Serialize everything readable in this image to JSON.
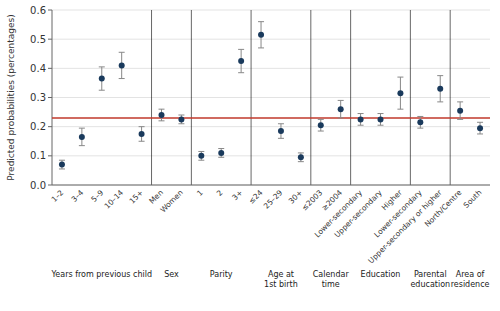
{
  "chart_data": {
    "type": "dot",
    "ylabel": "Predicted probabilities (percentages)",
    "categories": [
      "1–2",
      "3–4",
      "5–9",
      "10–14",
      "15+",
      "Men",
      "Women",
      "1",
      "2",
      "3+",
      "≤24",
      "25–29",
      "30+",
      "≤2003",
      "≥2004",
      "Lower-secondary",
      "Upper-secondary",
      "Higher",
      "Lower-secondary",
      "Upper-secondary or higher",
      "North/Centre",
      "South"
    ],
    "values": [
      0.07,
      0.165,
      0.365,
      0.41,
      0.175,
      0.24,
      0.225,
      0.1,
      0.11,
      0.425,
      0.515,
      0.185,
      0.095,
      0.205,
      0.26,
      0.225,
      0.225,
      0.315,
      0.215,
      0.33,
      0.255,
      0.195
    ],
    "error_low": [
      0.015,
      0.03,
      0.04,
      0.045,
      0.025,
      0.02,
      0.015,
      0.015,
      0.015,
      0.04,
      0.045,
      0.025,
      0.015,
      0.02,
      0.03,
      0.02,
      0.02,
      0.055,
      0.02,
      0.045,
      0.03,
      0.02
    ],
    "error_high": [
      0.015,
      0.03,
      0.04,
      0.045,
      0.025,
      0.02,
      0.015,
      0.015,
      0.015,
      0.04,
      0.045,
      0.025,
      0.015,
      0.02,
      0.03,
      0.02,
      0.02,
      0.055,
      0.02,
      0.045,
      0.03,
      0.02
    ],
    "color": "#1a3a5c",
    "groups": [
      {
        "label": "Years from previous child",
        "count": 5
      },
      {
        "label": "Sex",
        "count": 2
      },
      {
        "label": "Parity",
        "count": 3
      },
      {
        "label": "Age at\n1st birth",
        "count": 3
      },
      {
        "label": "Calendar\ntime",
        "count": 2
      },
      {
        "label": "Education",
        "count": 3
      },
      {
        "label": "Parental\neducation",
        "count": 2
      },
      {
        "label": "Area of\nresidence",
        "count": 2
      }
    ],
    "reference_lines": [
      {
        "value": 0.23,
        "color": "#c0392b"
      }
    ],
    "ylim": [
      0.0,
      0.6
    ],
    "yticks": [
      {
        "value": 0.0,
        "label": "0.0"
      },
      0.1,
      0.2,
      0.3,
      0.4,
      0.5,
      0.6
    ],
    "grid": true
  }
}
